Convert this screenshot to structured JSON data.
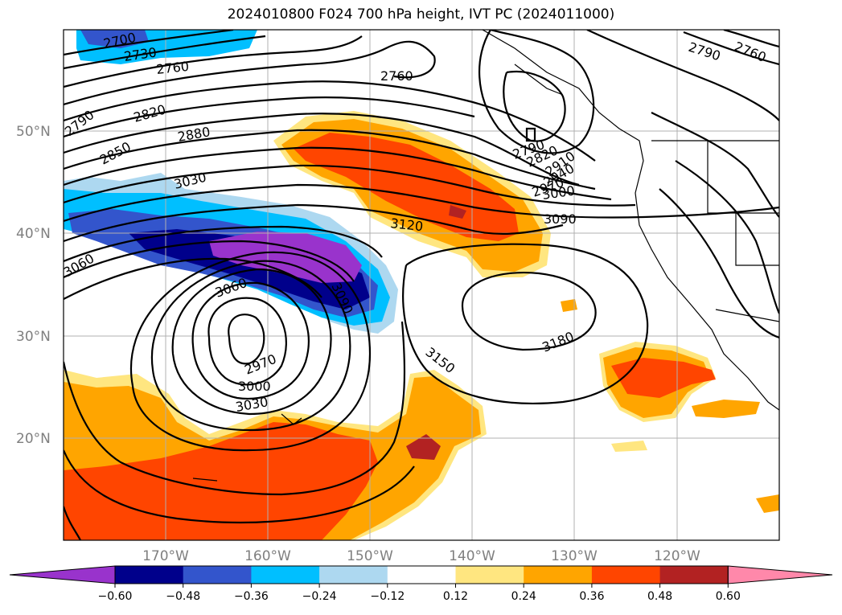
{
  "title": "2024010800 F024 700 hPa height, IVT PC (2024011000)",
  "lat_ticks": [
    "50°N",
    "40°N",
    "30°N",
    "20°N"
  ],
  "lon_ticks": [
    "170°W",
    "160°W",
    "150°W",
    "140°W",
    "130°W",
    "120°W"
  ],
  "contour_labels": [
    "2700",
    "2730",
    "2760",
    "2760",
    "2790",
    "2760",
    "2790",
    "2820",
    "2850",
    "2880",
    "3030",
    "3060",
    "3120",
    "3090",
    "3060",
    "3090",
    "3150",
    "3180",
    "2970",
    "3000",
    "3030",
    "2790",
    "2820",
    "2910",
    "2940",
    "2970",
    "3000"
  ],
  "colorbar": {
    "ticks": [
      "−0.60",
      "−0.48",
      "−0.36",
      "−0.24",
      "−0.12",
      "0.12",
      "0.24",
      "0.36",
      "0.48",
      "0.60"
    ],
    "colors": [
      "#9933cc",
      "#00008b",
      "#3355cc",
      "#00bfff",
      "#add8f0",
      "#ffffff",
      "#ffe680",
      "#ffa500",
      "#ff4500",
      "#b22222",
      "#ff88aa"
    ]
  }
}
